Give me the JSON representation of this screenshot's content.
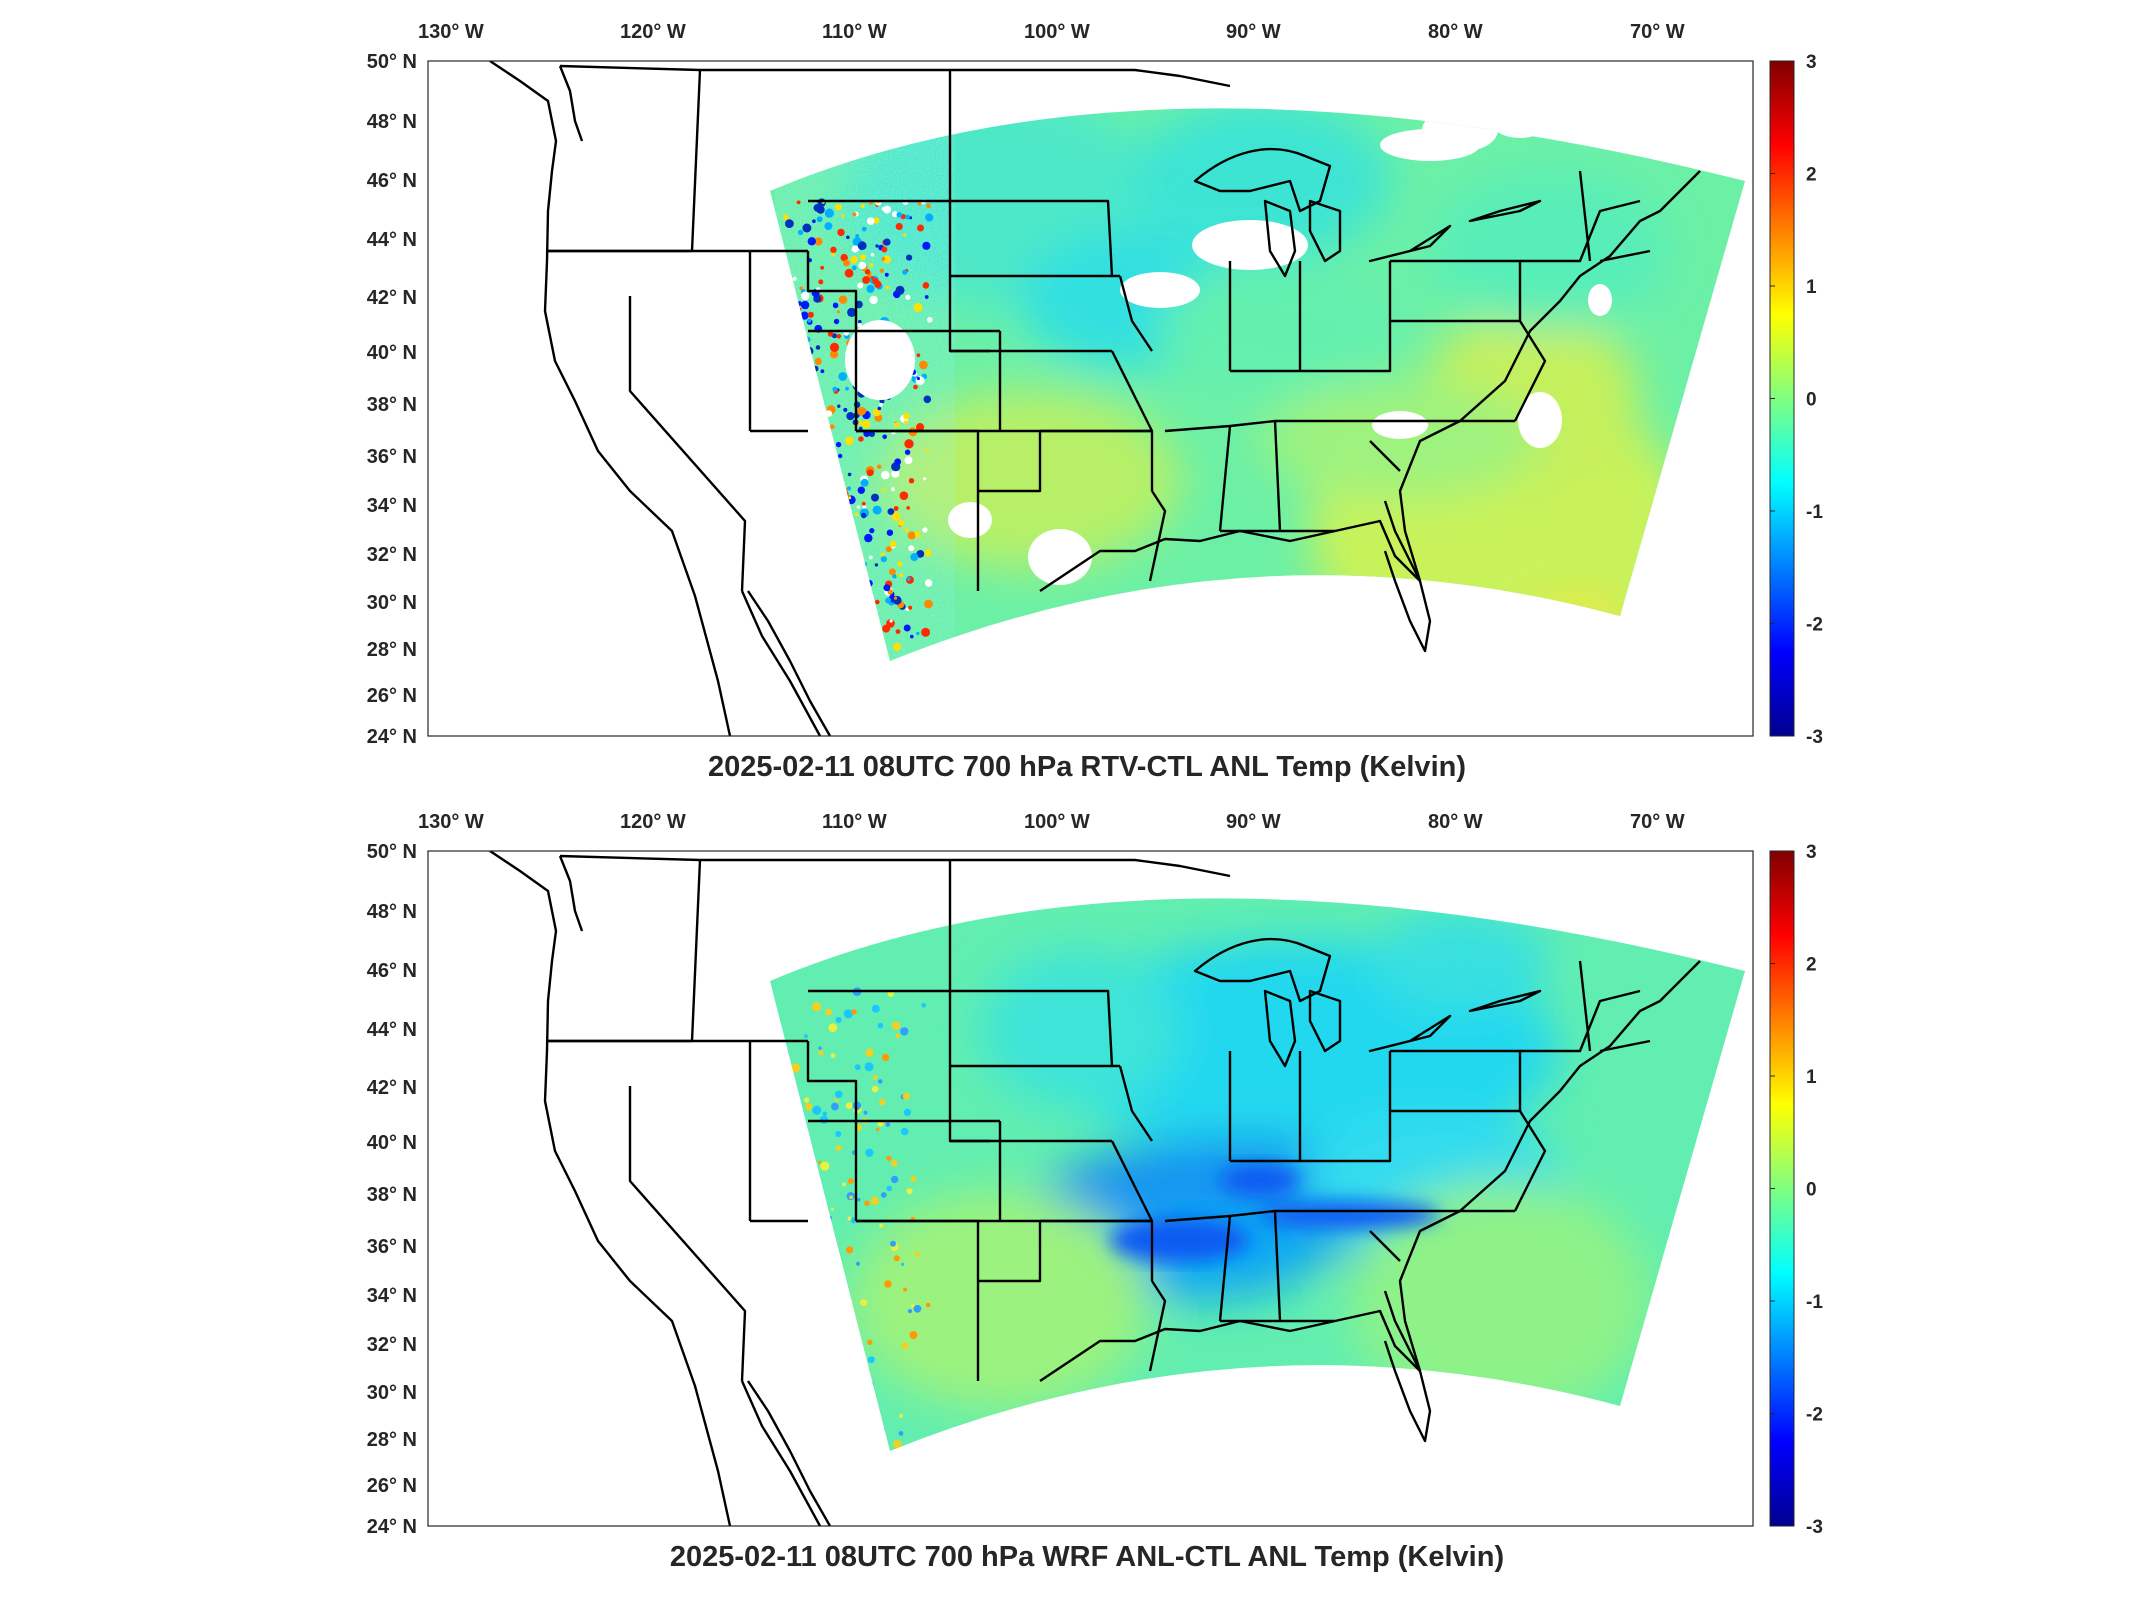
{
  "figure": {
    "lon_ticks": [
      "130",
      "120",
      "110",
      "100",
      "90",
      "80",
      "70"
    ],
    "lon_suffix": "W",
    "lat_ticks": [
      "50",
      "48",
      "46",
      "44",
      "42",
      "40",
      "38",
      "36",
      "34",
      "32",
      "30",
      "28",
      "26",
      "24"
    ],
    "lat_suffix": "N",
    "degree_symbol": "°",
    "colormap": "jet",
    "colorbar_ticks": [
      "3",
      "2",
      "1",
      "0",
      "-1",
      "-2",
      "-3"
    ]
  },
  "panels": [
    {
      "title": "2025-02-11 08UTC 700 hPa RTV-CTL ANL Temp (Kelvin)"
    },
    {
      "title": "2025-02-11 08UTC 700 hPa WRF ANL-CTL ANL Temp (Kelvin)"
    }
  ],
  "chart_data": [
    {
      "type": "heatmap",
      "title": "2025-02-11 08UTC 700 hPa RTV-CTL ANL Temp (Kelvin)",
      "variable": "700 hPa temperature difference (RTV-CTL analysis)",
      "units": "Kelvin",
      "xlim": [
        -132,
        -66
      ],
      "ylim": [
        24,
        50
      ],
      "color_range": [
        -3,
        3
      ],
      "colormap": "jet",
      "background_value_approx": 0.0,
      "features": [
        {
          "region": "Rocky Mountain front (western domain edge)",
          "value_range": [
            -3,
            3
          ],
          "pattern": "noisy mixed large positive and negative"
        },
        {
          "region": "Southeast US / Atlantic coast",
          "value_approx": 0.4
        },
        {
          "region": "Central and northern Plains",
          "value_approx": -0.5
        },
        {
          "region": "Missing data gaps (Great Lakes, Texas, Virginia)",
          "value": null
        }
      ]
    },
    {
      "type": "heatmap",
      "title": "2025-02-11 08UTC 700 hPa WRF ANL-CTL ANL Temp (Kelvin)",
      "variable": "700 hPa temperature difference (WRF ANL-CTL analysis)",
      "units": "Kelvin",
      "xlim": [
        -132,
        -66
      ],
      "ylim": [
        24,
        50
      ],
      "color_range": [
        -3,
        3
      ],
      "colormap": "jet",
      "background_value_approx": 0.0,
      "features": [
        {
          "region": "Oklahoma / Arkansas / Tennessee band",
          "value_approx": -1.8
        },
        {
          "region": "Great Lakes and Ohio Valley",
          "value_approx": -0.8
        },
        {
          "region": "Colorado Rockies",
          "value_range": [
            -1,
            1
          ],
          "pattern": "small-scale mixed"
        },
        {
          "region": "Southern Plains and Southeast",
          "value_approx": 0.2
        }
      ]
    }
  ]
}
